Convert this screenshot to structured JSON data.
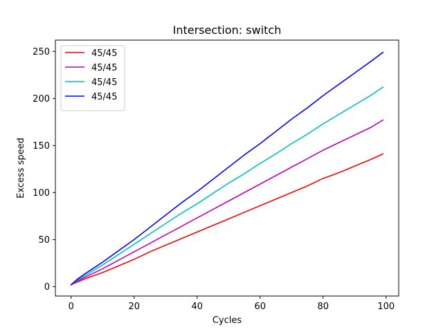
{
  "chart_data": {
    "type": "line",
    "title": "Intersection: switch",
    "xlabel": "Cycles",
    "ylabel": "Excess speed",
    "xlim": [
      -5,
      104
    ],
    "ylim": [
      -10,
      262
    ],
    "xticks": [
      0,
      20,
      40,
      60,
      80,
      100
    ],
    "yticks": [
      0,
      50,
      100,
      150,
      200,
      250
    ],
    "xtick_labels": [
      "0",
      "20",
      "40",
      "60",
      "80",
      "100"
    ],
    "ytick_labels": [
      "0",
      "50",
      "100",
      "150",
      "200",
      "250"
    ],
    "grid": false,
    "legend_position": "top-left",
    "x": [
      0,
      2,
      5,
      10,
      15,
      20,
      25,
      30,
      35,
      40,
      45,
      50,
      55,
      60,
      65,
      70,
      75,
      80,
      85,
      90,
      95,
      99
    ],
    "series": [
      {
        "name": "45/45",
        "color": "#ff0000",
        "values": [
          2,
          5,
          9,
          15,
          22,
          29,
          37,
          44,
          51,
          58,
          65,
          72,
          79,
          86,
          93,
          100,
          107,
          115,
          121,
          128,
          135,
          141
        ]
      },
      {
        "name": "45/45",
        "color": "#bf00bf",
        "values": [
          2,
          6,
          11,
          19,
          28,
          37,
          46,
          55,
          64,
          73,
          82,
          91,
          100,
          109,
          118,
          127,
          136,
          145,
          153,
          161,
          169,
          177
        ]
      },
      {
        "name": "45/45",
        "color": "#00bfbf",
        "values": [
          2,
          7,
          13,
          23,
          34,
          45,
          56,
          67,
          78,
          88,
          99,
          110,
          120,
          131,
          141,
          152,
          162,
          173,
          183,
          193,
          203,
          212
        ]
      },
      {
        "name": "45/45",
        "color": "#0000ff",
        "values": [
          2,
          8,
          15,
          26,
          38,
          50,
          63,
          76,
          89,
          101,
          114,
          127,
          140,
          152,
          165,
          178,
          190,
          203,
          215,
          227,
          239,
          249
        ]
      }
    ]
  }
}
